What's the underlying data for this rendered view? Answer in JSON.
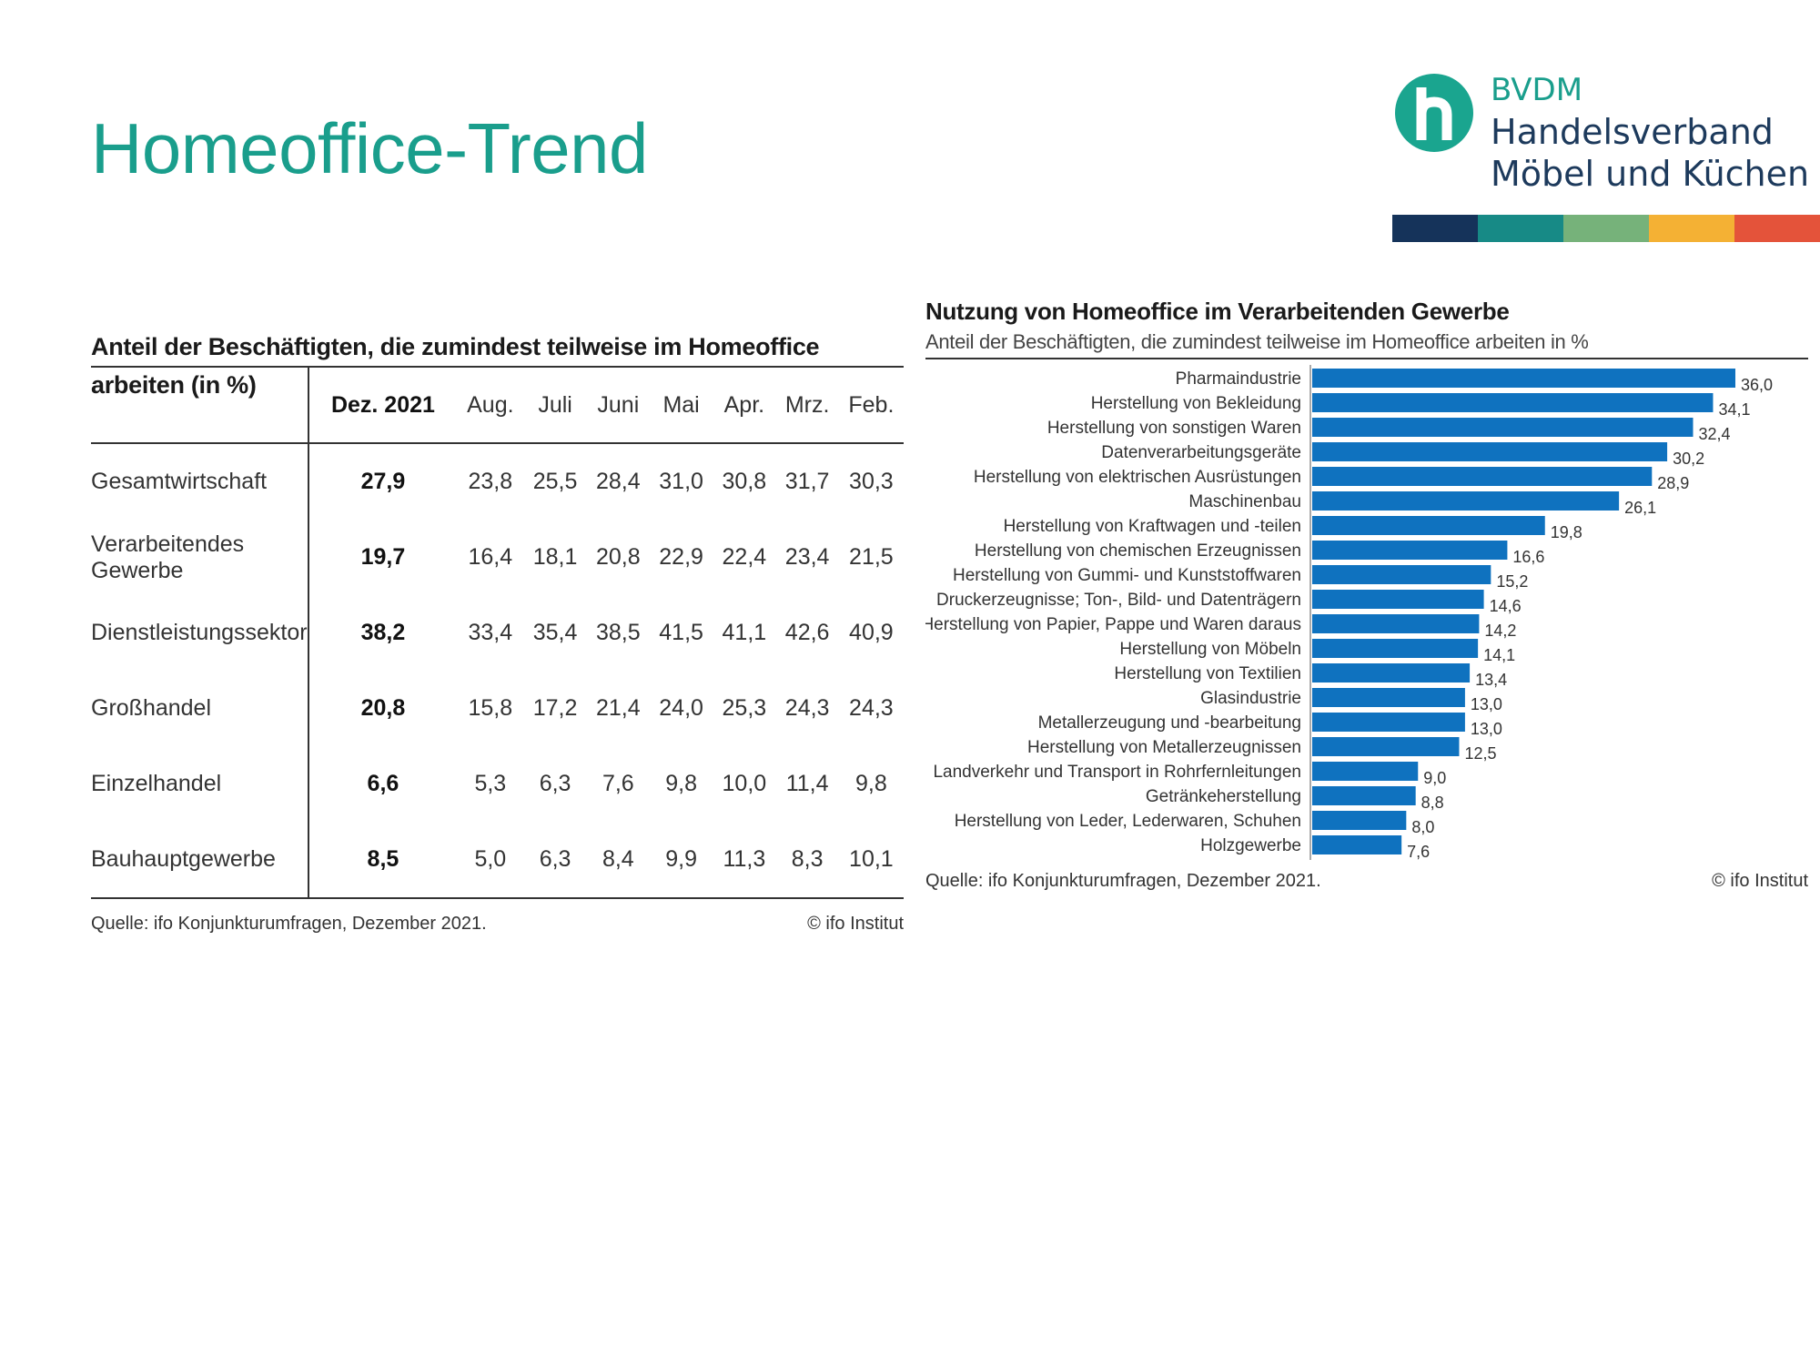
{
  "page": {
    "title": "Homeoffice-Trend"
  },
  "logo": {
    "line1": "BVDM",
    "line2": "Handelsverband",
    "line3": "Möbel und Küchen",
    "icon": "h-letter-logo-icon",
    "stripe_colors": [
      "#15335a",
      "#178a86",
      "#76b27a",
      "#f4b134",
      "#e4533a"
    ]
  },
  "table": {
    "caption": "Anteil der Beschäftigten, die zumindest teilweise im Homeoffice arbeiten (in %)",
    "columns": [
      "Dez. 2021",
      "Aug.",
      "Juli",
      "Juni",
      "Mai",
      "Apr.",
      "Mrz.",
      "Feb."
    ],
    "rows": [
      {
        "label": "Gesamtwirtschaft",
        "values": [
          "27,9",
          "23,8",
          "25,5",
          "28,4",
          "31,0",
          "30,8",
          "31,7",
          "30,3"
        ]
      },
      {
        "label": "Verarbeitendes Gewerbe",
        "values": [
          "19,7",
          "16,4",
          "18,1",
          "20,8",
          "22,9",
          "22,4",
          "23,4",
          "21,5"
        ]
      },
      {
        "label": "Dienstleistungssektor",
        "values": [
          "38,2",
          "33,4",
          "35,4",
          "38,5",
          "41,5",
          "41,1",
          "42,6",
          "40,9"
        ]
      },
      {
        "label": "Großhandel",
        "values": [
          "20,8",
          "15,8",
          "17,2",
          "21,4",
          "24,0",
          "25,3",
          "24,3",
          "24,3"
        ]
      },
      {
        "label": "Einzelhandel",
        "values": [
          "6,6",
          "5,3",
          "6,3",
          "7,6",
          "9,8",
          "10,0",
          "11,4",
          "9,8"
        ]
      },
      {
        "label": "Bauhauptgewerbe",
        "values": [
          "8,5",
          "5,0",
          "6,3",
          "8,4",
          "9,9",
          "11,3",
          "8,3",
          "10,1"
        ]
      }
    ],
    "source": "Quelle: ifo Konjunkturumfragen, Dezember 2021.",
    "copyright": "© ifo Institut"
  },
  "chart_data": {
    "type": "bar",
    "orientation": "horizontal",
    "title": "Nutzung von Homeoffice im Verarbeitenden Gewerbe",
    "subtitle": "Anteil der Beschäftigten, die zumindest teilweise im Homeoffice arbeiten in %",
    "categories": [
      "Pharmaindustrie",
      "Herstellung von Bekleidung",
      "Herstellung von sonstigen Waren",
      "Datenverarbeitungsgeräte",
      "Herstellung von elektrischen Ausrüstungen",
      "Maschinenbau",
      "Herstellung von Kraftwagen und -teilen",
      "Herstellung von chemischen Erzeugnissen",
      "Herstellung von Gummi- und Kunststoffwaren",
      "Druckerzeugnisse; Ton-, Bild- und Datenträgern",
      "Herstellung von Papier, Pappe und Waren daraus",
      "Herstellung von Möbeln",
      "Herstellung von Textilien",
      "Glasindustrie",
      "Metallerzeugung und -bearbeitung",
      "Herstellung von Metallerzeugnissen",
      "Landverkehr und Transport in Rohrfernleitungen",
      "Getränkeherstellung",
      "Herstellung von Leder, Lederwaren, Schuhen",
      "Holzgewerbe"
    ],
    "values": [
      36.0,
      34.1,
      32.4,
      30.2,
      28.9,
      26.1,
      19.8,
      16.6,
      15.2,
      14.6,
      14.2,
      14.1,
      13.4,
      13.0,
      13.0,
      12.5,
      9.0,
      8.8,
      8.0,
      7.6
    ],
    "value_labels": [
      "36,0",
      "34,1",
      "32,4",
      "30,2",
      "28,9",
      "26,1",
      "19,8",
      "16,6",
      "15,2",
      "14,6",
      "14,2",
      "14,1",
      "13,4",
      "13,0",
      "13,0",
      "12,5",
      "9,0",
      "8,8",
      "8,0",
      "7,6"
    ],
    "xlim": [
      0,
      36
    ],
    "bar_color": "#0f72bf",
    "grid": false,
    "source": "Quelle: ifo Konjunkturumfragen, Dezember 2021.",
    "copyright": "© ifo Institut"
  }
}
